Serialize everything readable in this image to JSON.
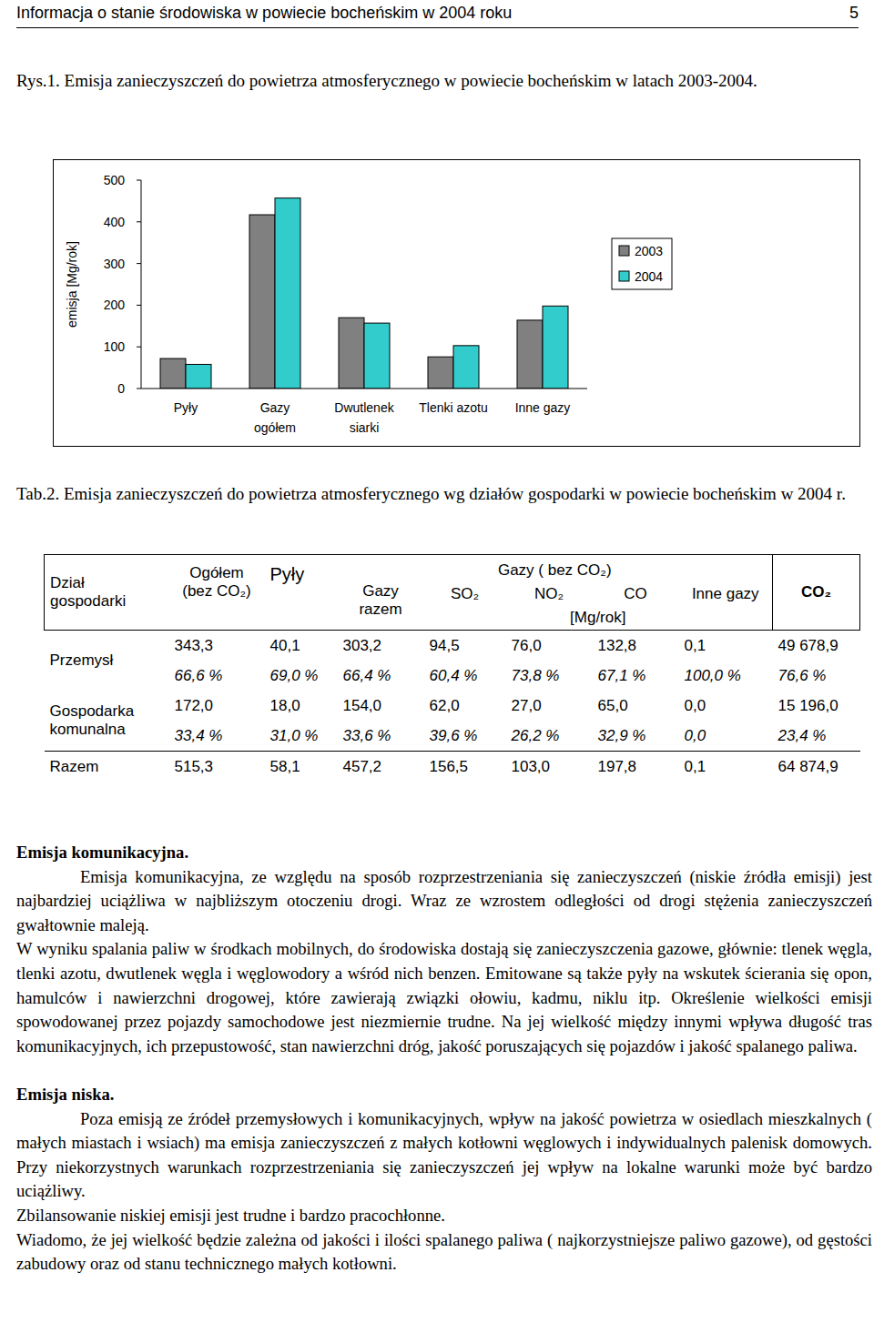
{
  "header": {
    "title": "Informacja o stanie środowiska w powiecie bocheńskim w 2004 roku",
    "page": "5"
  },
  "figure_caption": "Rys.1. Emisja zanieczyszczeń do powietrza atmosferycznego w powiecie bocheńskim w latach 2003-2004.",
  "chart_data": {
    "type": "bar",
    "categories": [
      "Pyły",
      "Gazy ogółem",
      "Dwutlenek siarki",
      "Tlenki azotu",
      "Inne gazy"
    ],
    "series": [
      {
        "name": "2003",
        "color": "#808080",
        "values": [
          72,
          417,
          170,
          76,
          164
        ]
      },
      {
        "name": "2004",
        "color": "#33cccc",
        "values": [
          58,
          457,
          157,
          103,
          198
        ]
      }
    ],
    "ylabel": "emisja [Mg/rok]",
    "ylim": [
      0,
      500
    ],
    "yticks": [
      0,
      100,
      200,
      300,
      400,
      500
    ],
    "grid": false,
    "legend": "right"
  },
  "table_caption": "Tab.2. Emisja zanieczyszczeń do powietrza atmosferycznego wg działów gospodarki w powiecie bocheńskim w 2004 r.",
  "table": {
    "header": {
      "first": "Dział gospodarki",
      "columns_before": [
        "Ogółem (bez CO₂)",
        "Pyły"
      ],
      "group": "Gazy ( bez CO₂)",
      "group_columns": [
        "Gazy razem",
        "SO₂",
        "NO₂",
        "CO",
        "Inne gazy"
      ],
      "last": "CO₂",
      "unit": "[Mg/rok]"
    },
    "rows": [
      {
        "label": "Przemysł",
        "values": [
          "343,3",
          "40,1",
          "303,2",
          "94,5",
          "76,0",
          "132,8",
          "0,1",
          "49 678,9"
        ],
        "percents": [
          "66,6 %",
          "69,0 %",
          "66,4 %",
          "60,4 %",
          "73,8 %",
          "67,1 %",
          "100,0 %",
          "76,6 %"
        ]
      },
      {
        "label": "Gospodarka komunalna",
        "values": [
          "172,0",
          "18,0",
          "154,0",
          "62,0",
          "27,0",
          "65,0",
          "0,0",
          "15 196,0"
        ],
        "percents": [
          "33,4 %",
          "31,0 %",
          "33,6 %",
          "39,6 %",
          "26,2 %",
          "32,9 %",
          "0,0",
          "23,4 %"
        ]
      }
    ],
    "total": {
      "label": "Razem",
      "values": [
        "515,3",
        "58,1",
        "457,2",
        "156,5",
        "103,0",
        "197,8",
        "0,1",
        "64 874,9"
      ]
    }
  },
  "sections": [
    {
      "heading": "Emisja komunikacyjna.",
      "paragraphs": [
        "Emisja komunikacyjna, ze względu na sposób rozprzestrzeniania się zanieczyszczeń (niskie źródła emisji) jest najbardziej uciążliwa w najbliższym otoczeniu drogi. Wraz ze wzrostem odległości od drogi stężenia zanieczyszczeń gwałtownie maleją.",
        "W wyniku spalania paliw w środkach mobilnych, do środowiska dostają się zanieczyszczenia gazowe, głównie: tlenek węgla, tlenki azotu, dwutlenek węgla i węglowodory a wśród nich benzen. Emitowane są także pyły na wskutek ścierania się opon, hamulców i nawierzchni drogowej, które zawierają związki ołowiu, kadmu, niklu itp. Określenie wielkości emisji spowodowanej przez pojazdy samochodowe jest niezmiernie trudne. Na jej wielkość między innymi wpływa długość tras komunikacyjnych, ich przepustowość, stan nawierzchni dróg, jakość poruszających się pojazdów i jakość spalanego paliwa."
      ]
    },
    {
      "heading": "Emisja niska.",
      "paragraphs": [
        "Poza emisją ze źródeł przemysłowych i komunikacyjnych, wpływ na jakość powietrza w osiedlach mieszkalnych ( małych miastach i wsiach) ma emisja zanieczyszczeń z małych kotłowni węglowych i indywidualnych palenisk domowych. Przy niekorzystnych warunkach rozprzestrzeniania się zanieczyszczeń jej wpływ na lokalne warunki może być bardzo uciążliwy.",
        "Zbilansowanie niskiej emisji jest trudne i bardzo pracochłonne.",
        "Wiadomo, że jej wielkość będzie zależna od jakości i ilości spalanego paliwa ( najkorzystniejsze paliwo gazowe), od gęstości zabudowy oraz od stanu technicznego małych kotłowni."
      ]
    }
  ]
}
